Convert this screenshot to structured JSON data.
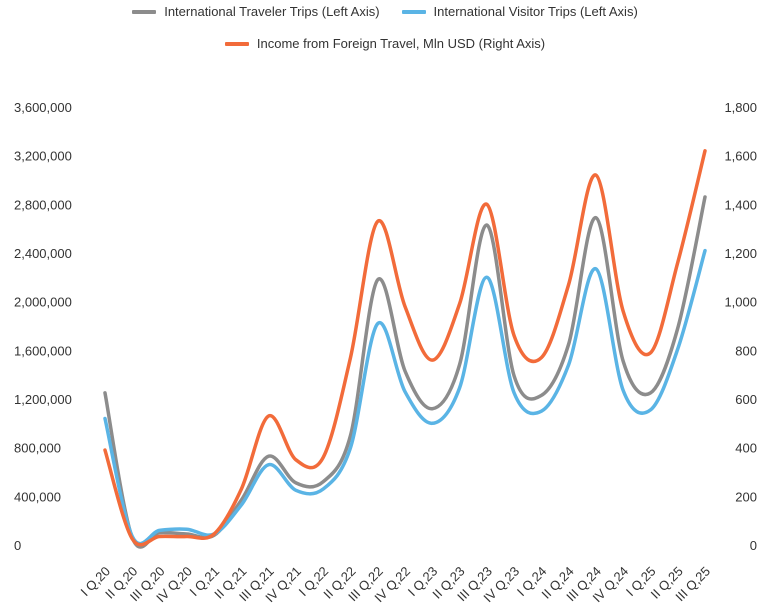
{
  "chart_data": {
    "type": "line",
    "categories": [
      "I Q,20",
      "II Q,20",
      "III Q,20",
      "IV Q,20",
      "I Q,21",
      "II Q,21",
      "III Q,21",
      "IV Q,21",
      "I Q,22",
      "II Q,22",
      "III Q,22",
      "IV Q,22",
      "I Q,23",
      "II Q,23",
      "III Q,23",
      "IV Q,23",
      "I Q,24",
      "II Q,24",
      "III Q,24",
      "IV Q,24",
      "I Q,25",
      "II Q,25",
      "III Q,25"
    ],
    "y_left": {
      "ylim": [
        0,
        3600000
      ],
      "ticks": [
        0,
        400000,
        800000,
        1200000,
        1600000,
        2000000,
        2400000,
        2800000,
        3200000,
        3600000
      ],
      "tick_labels": [
        "0",
        "400,000",
        "800,000",
        "1,200,000",
        "1,600,000",
        "2,000,000",
        "2,400,000",
        "2,800,000",
        "3,200,000",
        "3,600,000"
      ]
    },
    "y_right": {
      "ylim": [
        0,
        1800
      ],
      "ticks": [
        0,
        200,
        400,
        600,
        800,
        1000,
        1200,
        1400,
        1600,
        1800
      ],
      "tick_labels": [
        "0",
        "200",
        "400",
        "600",
        "800",
        "1,000",
        "1,200",
        "1,400",
        "1,600",
        "1,800"
      ]
    },
    "legend_position": "top",
    "grid": false,
    "series": [
      {
        "name": "International Traveler Trips (Left Axis)",
        "axis": "left",
        "color": "#8c8c8c",
        "values": [
          1250000,
          60000,
          100000,
          90000,
          80000,
          370000,
          730000,
          510000,
          520000,
          900000,
          2180000,
          1430000,
          1120000,
          1480000,
          2630000,
          1390000,
          1230000,
          1650000,
          2690000,
          1510000,
          1250000,
          1780000,
          2860000
        ]
      },
      {
        "name": "International Visitor Trips (Left Axis)",
        "axis": "left",
        "color": "#5ab4e5",
        "values": [
          1040000,
          70000,
          120000,
          130000,
          90000,
          330000,
          660000,
          450000,
          460000,
          800000,
          1820000,
          1260000,
          1000000,
          1290000,
          2200000,
          1250000,
          1100000,
          1480000,
          2270000,
          1270000,
          1110000,
          1610000,
          2420000
        ]
      },
      {
        "name": "Income from Foreign Travel, Mln USD (Right Axis)",
        "axis": "right",
        "color": "#f26b3a",
        "values": [
          390,
          25,
          35,
          35,
          45,
          230,
          530,
          350,
          360,
          770,
          1330,
          980,
          760,
          990,
          1400,
          860,
          770,
          1070,
          1520,
          960,
          790,
          1160,
          1620
        ]
      }
    ]
  }
}
